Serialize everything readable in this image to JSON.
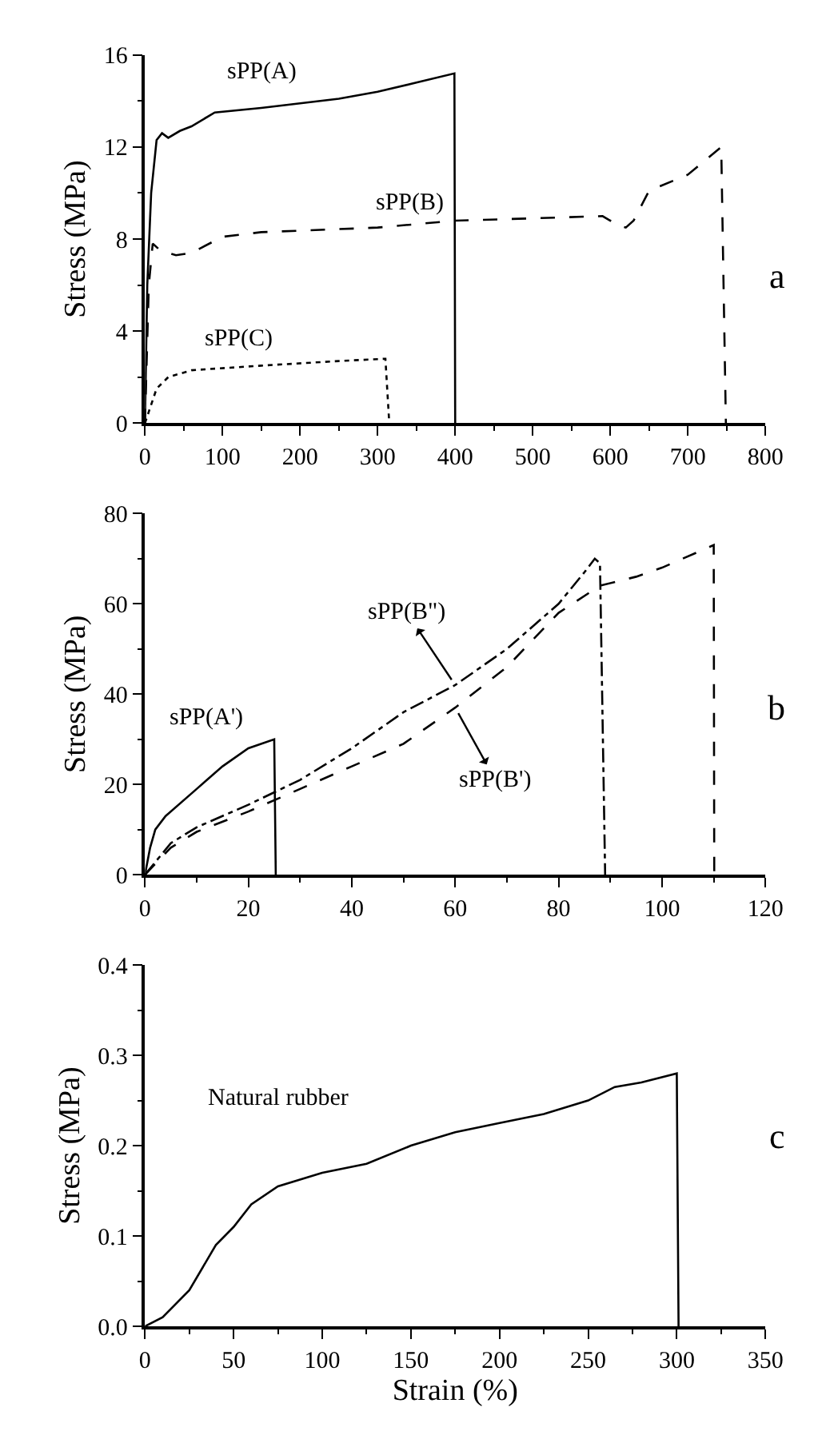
{
  "chart_data": [
    {
      "type": "line",
      "ylabel": "Stress (MPa)",
      "xlim": [
        0,
        800
      ],
      "xticks": [
        0,
        100,
        200,
        300,
        400,
        500,
        600,
        700,
        800
      ],
      "ylim": [
        0,
        16
      ],
      "yticks": [
        0,
        4,
        8,
        12,
        16
      ],
      "annotations": [
        "a"
      ],
      "series": [
        {
          "name": "sPP(A)",
          "color": "#000000",
          "line_style": "solid",
          "x": [
            0,
            3,
            8,
            15,
            22,
            30,
            45,
            60,
            90,
            150,
            250,
            300,
            350,
            399,
            400
          ],
          "values": [
            0,
            6,
            10,
            12.3,
            12.6,
            12.4,
            12.7,
            12.9,
            13.5,
            13.7,
            14.1,
            14.4,
            14.8,
            15.2,
            0
          ]
        },
        {
          "name": "sPP(B)",
          "color": "#000000",
          "line_style": "dashed",
          "x": [
            0,
            5,
            10,
            20,
            40,
            60,
            100,
            150,
            300,
            400,
            500,
            590,
            610,
            620,
            630,
            650,
            700,
            743,
            749
          ],
          "values": [
            0,
            6,
            7.8,
            7.5,
            7.3,
            7.4,
            8.1,
            8.3,
            8.5,
            8.8,
            8.9,
            9.0,
            8.6,
            8.5,
            8.8,
            10.1,
            10.8,
            12,
            0
          ]
        },
        {
          "name": "sPP(C)",
          "color": "#000000",
          "line_style": "dotted",
          "x": [
            0,
            5,
            15,
            30,
            60,
            150,
            250,
            310,
            315
          ],
          "values": [
            0,
            0.5,
            1.5,
            2.0,
            2.3,
            2.5,
            2.7,
            2.8,
            0
          ]
        }
      ]
    },
    {
      "type": "line",
      "ylabel": "Stress (MPa)",
      "xlim": [
        0,
        120
      ],
      "xticks": [
        0,
        20,
        40,
        60,
        80,
        100,
        120
      ],
      "ylim": [
        0,
        80
      ],
      "yticks": [
        0,
        20,
        40,
        60,
        80
      ],
      "annotations": [
        "b"
      ],
      "series": [
        {
          "name": "sPP(A')",
          "color": "#000000",
          "line_style": "solid",
          "x": [
            0,
            1,
            2,
            4,
            10,
            15,
            20,
            25,
            25.3
          ],
          "values": [
            0,
            6,
            10,
            13,
            19,
            24,
            28,
            30,
            0
          ]
        },
        {
          "name": "sPP(B\")",
          "color": "#000000",
          "line_style": "dashdot",
          "x": [
            0,
            5,
            10,
            20,
            30,
            40,
            50,
            60,
            70,
            80,
            85,
            87,
            88,
            89
          ],
          "values": [
            0,
            7,
            10.5,
            15.5,
            21,
            28,
            36,
            42,
            50,
            60,
            67,
            70,
            69,
            0
          ]
        },
        {
          "name": "sPP(B')",
          "color": "#000000",
          "line_style": "dashed",
          "x": [
            0,
            5,
            10,
            20,
            30,
            40,
            50,
            60,
            70,
            80,
            88,
            95,
            100,
            108,
            110,
            110.1
          ],
          "values": [
            0,
            6,
            9.5,
            14,
            19,
            24,
            29,
            37,
            46,
            58,
            64,
            66,
            68,
            72,
            73,
            0
          ]
        }
      ]
    },
    {
      "type": "line",
      "xlabel": "Strain (%)",
      "ylabel": "Stress (MPa)",
      "xlim": [
        0,
        350
      ],
      "xticks": [
        0,
        50,
        100,
        150,
        200,
        250,
        300,
        350
      ],
      "ylim": [
        0,
        0.4
      ],
      "yticks": [
        {
          "value": 0,
          "label": "0.0"
        },
        0.1,
        0.2,
        0.3,
        0.4
      ],
      "annotations": [
        "c"
      ],
      "series": [
        {
          "name": "Natural rubber",
          "color": "#000000",
          "line_style": "solid",
          "x": [
            0,
            10,
            25,
            40,
            50,
            60,
            75,
            100,
            125,
            150,
            175,
            200,
            225,
            250,
            265,
            280,
            300,
            301
          ],
          "values": [
            0,
            0.01,
            0.04,
            0.09,
            0.11,
            0.135,
            0.155,
            0.17,
            0.18,
            0.2,
            0.215,
            0.225,
            0.235,
            0.25,
            0.265,
            0.27,
            0.28,
            0
          ]
        }
      ]
    }
  ]
}
